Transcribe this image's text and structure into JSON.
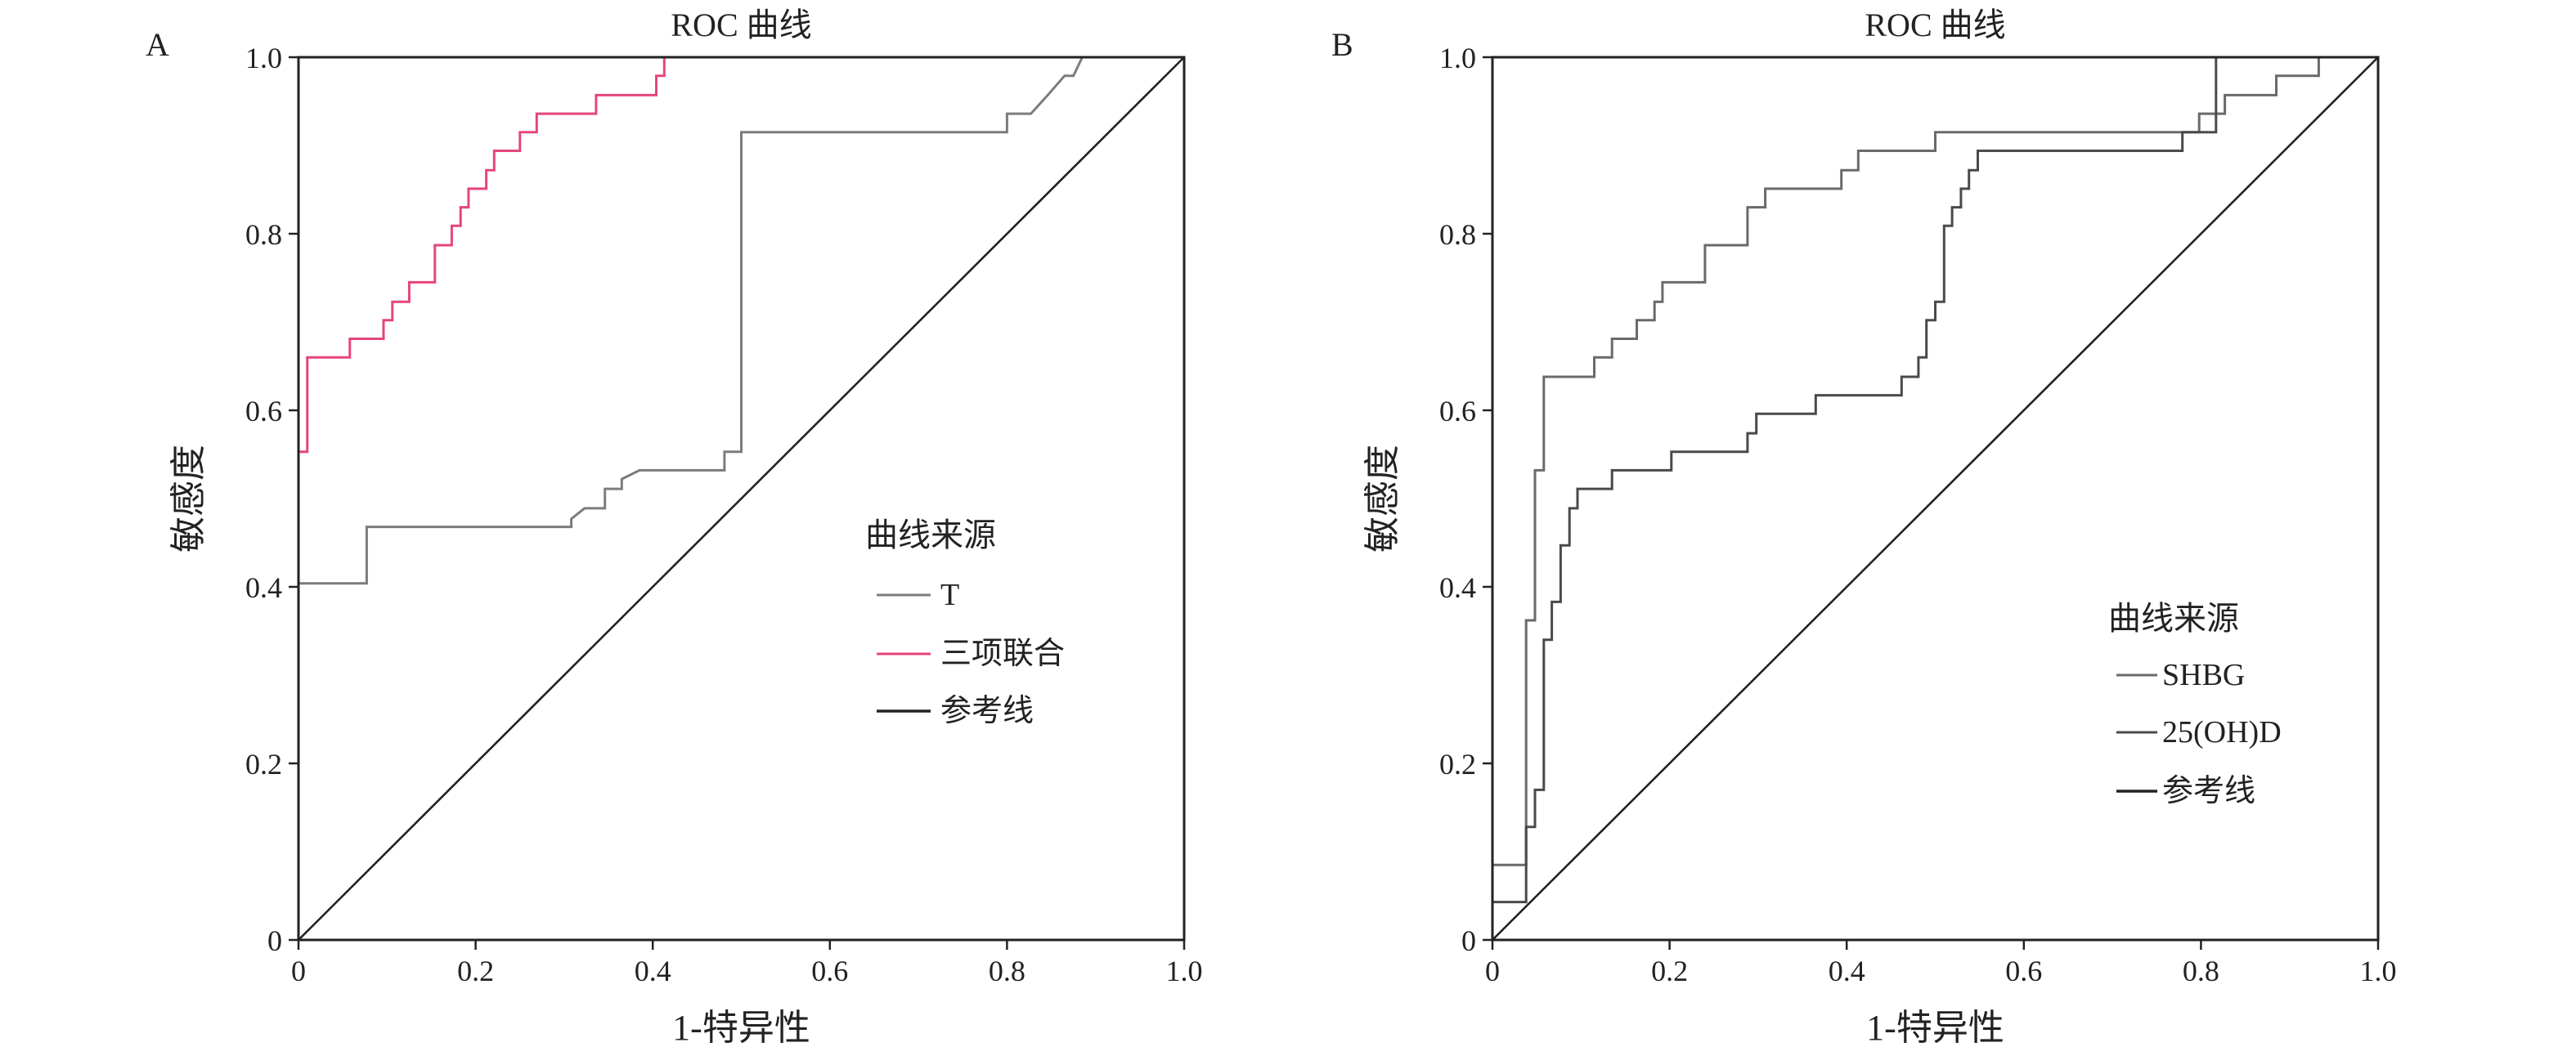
{
  "chart_data": [
    {
      "type": "line",
      "panel_label": "A",
      "title": "ROC 曲线",
      "xlabel": "1-特异性",
      "ylabel": "敏感度",
      "xlim": [
        0,
        1
      ],
      "ylim": [
        0,
        1
      ],
      "x_ticks": [
        "0",
        "0.2",
        "0.4",
        "0.6",
        "0.8",
        "1.0"
      ],
      "y_ticks": [
        "0",
        "0.2",
        "0.4",
        "0.6",
        "0.8",
        "1.0"
      ],
      "grid": false,
      "legend": {
        "title": "曲线来源",
        "placement": "center-right",
        "items": [
          "T",
          "三项联合",
          "参考线"
        ]
      },
      "series": [
        {
          "name": "T",
          "color": "#7c7c7c",
          "points": [
            [
              0,
              0
            ],
            [
              0,
              0.404
            ],
            [
              0.077,
              0.404
            ],
            [
              0.077,
              0.468
            ],
            [
              0.308,
              0.468
            ],
            [
              0.308,
              0.477
            ],
            [
              0.323,
              0.489
            ],
            [
              0.346,
              0.489
            ],
            [
              0.346,
              0.511
            ],
            [
              0.365,
              0.511
            ],
            [
              0.365,
              0.522
            ],
            [
              0.385,
              0.532
            ],
            [
              0.481,
              0.532
            ],
            [
              0.481,
              0.553
            ],
            [
              0.5,
              0.553
            ],
            [
              0.5,
              0.915
            ],
            [
              0.8,
              0.915
            ],
            [
              0.8,
              0.936
            ],
            [
              0.827,
              0.936
            ],
            [
              0.846,
              0.957
            ],
            [
              0.865,
              0.979
            ],
            [
              0.875,
              0.979
            ],
            [
              0.885,
              1.0
            ],
            [
              1.0,
              1.0
            ]
          ]
        },
        {
          "name": "三项联合",
          "color": "#e6457a",
          "points": [
            [
              0,
              0
            ],
            [
              0,
              0.553
            ],
            [
              0.01,
              0.553
            ],
            [
              0.01,
              0.66
            ],
            [
              0.058,
              0.66
            ],
            [
              0.058,
              0.681
            ],
            [
              0.096,
              0.681
            ],
            [
              0.096,
              0.702
            ],
            [
              0.106,
              0.702
            ],
            [
              0.106,
              0.723
            ],
            [
              0.125,
              0.723
            ],
            [
              0.125,
              0.745
            ],
            [
              0.154,
              0.745
            ],
            [
              0.154,
              0.787
            ],
            [
              0.173,
              0.787
            ],
            [
              0.173,
              0.809
            ],
            [
              0.183,
              0.809
            ],
            [
              0.183,
              0.83
            ],
            [
              0.192,
              0.83
            ],
            [
              0.192,
              0.851
            ],
            [
              0.212,
              0.851
            ],
            [
              0.212,
              0.872
            ],
            [
              0.221,
              0.872
            ],
            [
              0.221,
              0.894
            ],
            [
              0.25,
              0.894
            ],
            [
              0.25,
              0.915
            ],
            [
              0.269,
              0.915
            ],
            [
              0.269,
              0.936
            ],
            [
              0.336,
              0.936
            ],
            [
              0.336,
              0.957
            ],
            [
              0.404,
              0.957
            ],
            [
              0.404,
              0.979
            ],
            [
              0.413,
              0.979
            ],
            [
              0.413,
              1.0
            ],
            [
              1.0,
              1.0
            ]
          ]
        },
        {
          "name": "参考线",
          "color": "#222222",
          "points": [
            [
              0,
              0
            ],
            [
              1,
              1
            ]
          ]
        }
      ]
    },
    {
      "type": "line",
      "panel_label": "B",
      "title": "ROC 曲线",
      "xlabel": "1-特异性",
      "ylabel": "敏感度",
      "xlim": [
        0,
        1
      ],
      "ylim": [
        0,
        1
      ],
      "x_ticks": [
        "0",
        "0.2",
        "0.4",
        "0.6",
        "0.8",
        "1.0"
      ],
      "y_ticks": [
        "0",
        "0.2",
        "0.4",
        "0.6",
        "0.8",
        "1.0"
      ],
      "grid": false,
      "legend": {
        "title": "曲线来源",
        "placement": "bottom-right",
        "items": [
          "SHBG",
          "25(OH)D",
          "参考线"
        ]
      },
      "series": [
        {
          "name": "SHBG",
          "color": "#6a6a6a",
          "points": [
            [
              0,
              0
            ],
            [
              0,
              0.085
            ],
            [
              0.038,
              0.085
            ],
            [
              0.038,
              0.362
            ],
            [
              0.048,
              0.362
            ],
            [
              0.048,
              0.532
            ],
            [
              0.058,
              0.532
            ],
            [
              0.058,
              0.638
            ],
            [
              0.115,
              0.638
            ],
            [
              0.115,
              0.66
            ],
            [
              0.135,
              0.66
            ],
            [
              0.135,
              0.681
            ],
            [
              0.163,
              0.681
            ],
            [
              0.163,
              0.702
            ],
            [
              0.183,
              0.702
            ],
            [
              0.183,
              0.723
            ],
            [
              0.192,
              0.723
            ],
            [
              0.192,
              0.745
            ],
            [
              0.24,
              0.745
            ],
            [
              0.24,
              0.787
            ],
            [
              0.288,
              0.787
            ],
            [
              0.288,
              0.83
            ],
            [
              0.308,
              0.83
            ],
            [
              0.308,
              0.851
            ],
            [
              0.394,
              0.851
            ],
            [
              0.394,
              0.872
            ],
            [
              0.413,
              0.872
            ],
            [
              0.413,
              0.894
            ],
            [
              0.5,
              0.894
            ],
            [
              0.5,
              0.915
            ],
            [
              0.798,
              0.915
            ],
            [
              0.798,
              0.936
            ],
            [
              0.827,
              0.936
            ],
            [
              0.827,
              0.957
            ],
            [
              0.885,
              0.957
            ],
            [
              0.885,
              0.979
            ],
            [
              0.933,
              0.979
            ],
            [
              0.933,
              1.0
            ],
            [
              1.0,
              1.0
            ]
          ]
        },
        {
          "name": "25(OH)D",
          "color": "#4a4a4a",
          "points": [
            [
              0,
              0
            ],
            [
              0,
              0.043
            ],
            [
              0.038,
              0.043
            ],
            [
              0.038,
              0.128
            ],
            [
              0.048,
              0.128
            ],
            [
              0.048,
              0.17
            ],
            [
              0.058,
              0.17
            ],
            [
              0.058,
              0.34
            ],
            [
              0.067,
              0.34
            ],
            [
              0.067,
              0.383
            ],
            [
              0.077,
              0.383
            ],
            [
              0.077,
              0.447
            ],
            [
              0.087,
              0.447
            ],
            [
              0.087,
              0.489
            ],
            [
              0.096,
              0.489
            ],
            [
              0.096,
              0.511
            ],
            [
              0.135,
              0.511
            ],
            [
              0.135,
              0.532
            ],
            [
              0.202,
              0.532
            ],
            [
              0.202,
              0.553
            ],
            [
              0.288,
              0.553
            ],
            [
              0.288,
              0.574
            ],
            [
              0.298,
              0.574
            ],
            [
              0.298,
              0.596
            ],
            [
              0.365,
              0.596
            ],
            [
              0.365,
              0.617
            ],
            [
              0.462,
              0.617
            ],
            [
              0.462,
              0.638
            ],
            [
              0.481,
              0.638
            ],
            [
              0.481,
              0.66
            ],
            [
              0.49,
              0.66
            ],
            [
              0.49,
              0.702
            ],
            [
              0.5,
              0.702
            ],
            [
              0.5,
              0.723
            ],
            [
              0.51,
              0.723
            ],
            [
              0.51,
              0.809
            ],
            [
              0.519,
              0.809
            ],
            [
              0.519,
              0.83
            ],
            [
              0.529,
              0.83
            ],
            [
              0.529,
              0.851
            ],
            [
              0.538,
              0.851
            ],
            [
              0.538,
              0.872
            ],
            [
              0.548,
              0.872
            ],
            [
              0.548,
              0.894
            ],
            [
              0.779,
              0.894
            ],
            [
              0.779,
              0.915
            ],
            [
              0.817,
              0.915
            ],
            [
              0.817,
              1.0
            ],
            [
              1.0,
              1.0
            ]
          ]
        },
        {
          "name": "参考线",
          "color": "#222222",
          "points": [
            [
              0,
              0
            ],
            [
              1,
              1
            ]
          ]
        }
      ]
    }
  ]
}
